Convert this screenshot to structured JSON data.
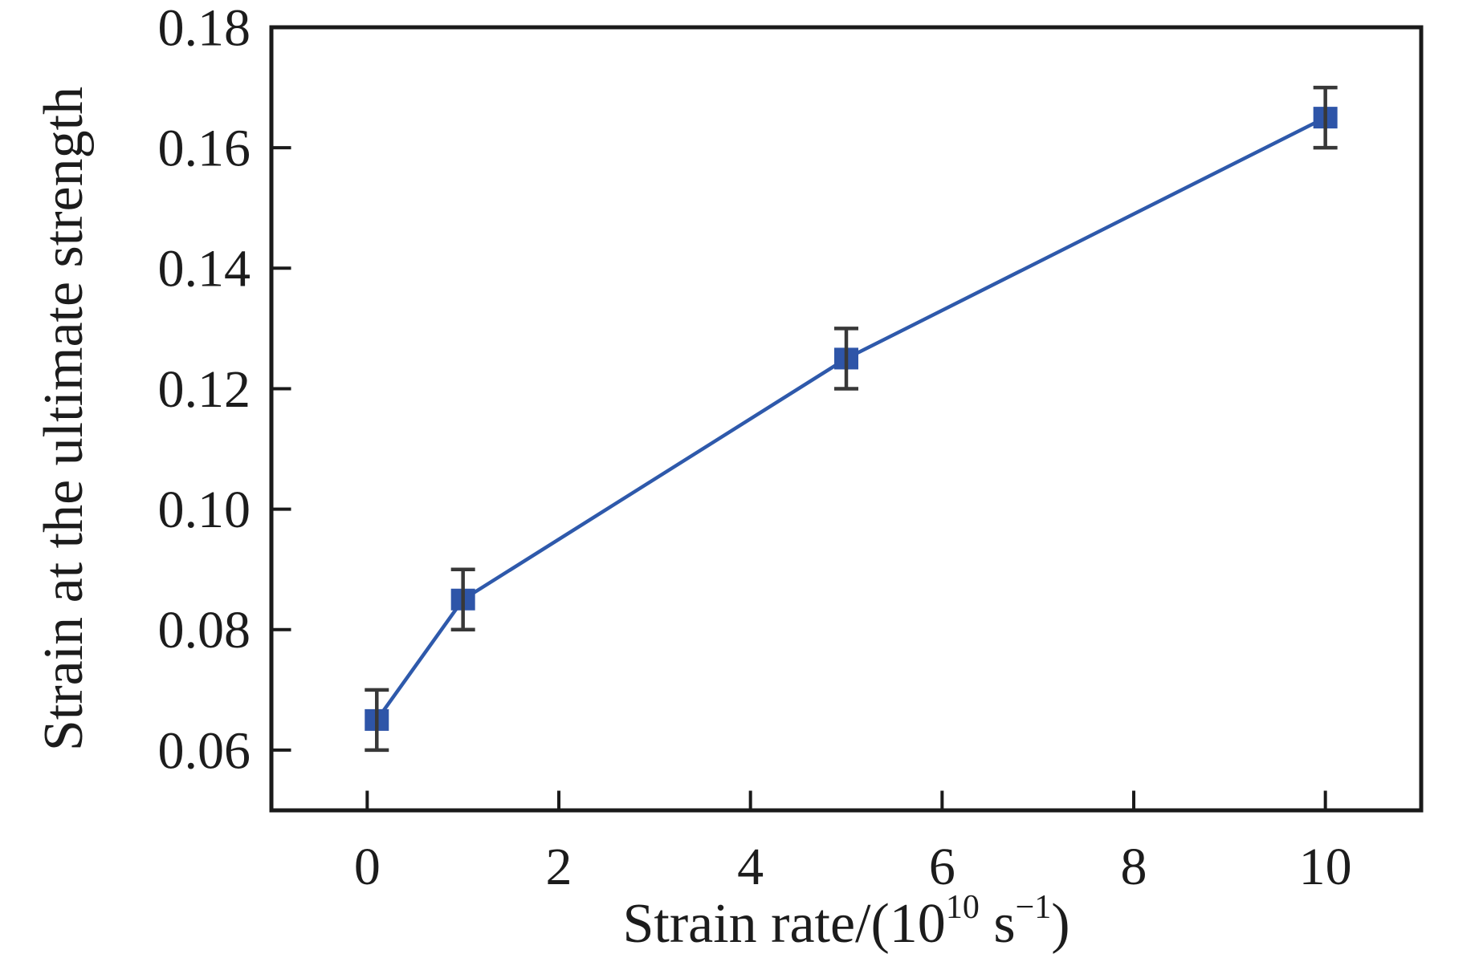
{
  "figure": {
    "background": "#ffffff"
  },
  "chart_data": {
    "type": "line",
    "title": "",
    "xlabel": "Strain rate/(10^10 s^-1)",
    "xlabel_parts": [
      {
        "t": "Strain rate/(10",
        "sup": false
      },
      {
        "t": "10",
        "sup": true
      },
      {
        "t": " s",
        "sup": false
      },
      {
        "t": "−1",
        "sup": true
      },
      {
        "t": ")",
        "sup": false
      }
    ],
    "ylabel": "Strain at the ultimate strength",
    "series": [
      {
        "name": "strain-at-ultimate-strength",
        "x": [
          0.1,
          1,
          5,
          10
        ],
        "y": [
          0.065,
          0.085,
          0.125,
          0.165
        ],
        "yerr": [
          0.005,
          0.005,
          0.005,
          0.005
        ]
      }
    ],
    "xlim": [
      -1,
      11
    ],
    "ylim": [
      0.05,
      0.18
    ],
    "xticks": {
      "values": [
        0,
        2,
        4,
        6,
        8,
        10
      ],
      "labels": [
        "0",
        "2",
        "4",
        "6",
        "8",
        "10"
      ]
    },
    "yticks": {
      "values": [
        0.06,
        0.08,
        0.1,
        0.12,
        0.14,
        0.16,
        0.18
      ],
      "labels": [
        "0.06",
        "0.08",
        "0.10",
        "0.12",
        "0.14",
        "0.16",
        "0.18"
      ]
    },
    "grid": false,
    "legend": "none",
    "marker": "square",
    "colors": {
      "line": "#2e59ab",
      "marker": "#2e55a8",
      "error_bar": "#383838",
      "axis": "#1a1a1a",
      "text": "#1c1c1c"
    }
  }
}
